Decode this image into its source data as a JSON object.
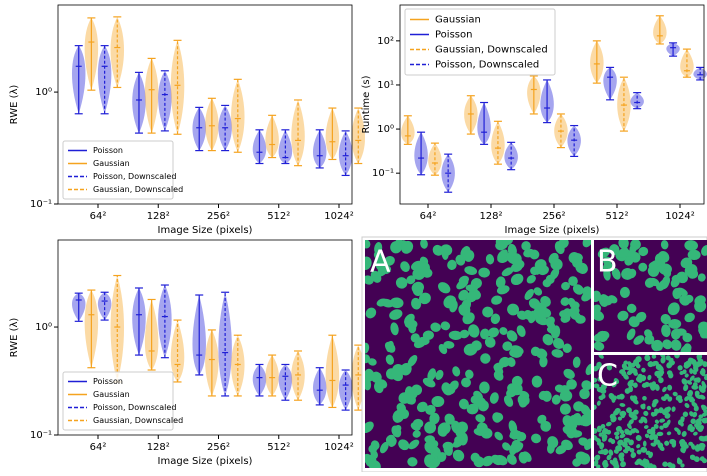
{
  "chart_data": [
    {
      "type": "violin",
      "xlabel": "Image Size (pixels)",
      "ylabel": "RWE (λ)",
      "log_y": true,
      "legend": "lower left",
      "categories": [
        "64²",
        "128²",
        "256²",
        "512²",
        "1024²"
      ],
      "ylim": [
        0.1,
        6
      ],
      "yticks": [
        {
          "value": 0.1,
          "label": "10⁻¹"
        },
        {
          "value": 1,
          "label": "10⁰"
        }
      ],
      "series": [
        {
          "name": "Poisson",
          "color": "#1f1fd6",
          "dashed": false,
          "min": [
            0.64,
            0.43,
            0.3,
            0.23,
            0.21
          ],
          "median": [
            1.7,
            0.85,
            0.48,
            0.29,
            0.27
          ],
          "max": [
            2.6,
            1.5,
            0.73,
            0.46,
            0.46
          ]
        },
        {
          "name": "Gaussian",
          "color": "#f5a31f",
          "dashed": false,
          "min": [
            1.04,
            0.43,
            0.3,
            0.26,
            0.25
          ],
          "median": [
            2.8,
            1.05,
            0.5,
            0.34,
            0.36
          ],
          "max": [
            4.6,
            2.0,
            0.88,
            0.62,
            0.72
          ]
        },
        {
          "name": "Poisson, Downscaled",
          "color": "#1f1fd6",
          "dashed": true,
          "min": [
            0.64,
            0.45,
            0.3,
            0.23,
            0.18
          ],
          "median": [
            1.7,
            0.95,
            0.48,
            0.26,
            0.27
          ],
          "max": [
            2.6,
            1.55,
            0.76,
            0.46,
            0.45
          ]
        },
        {
          "name": "Gaussian, Downscaled",
          "color": "#f5a31f",
          "dashed": true,
          "min": [
            1.1,
            0.42,
            0.29,
            0.22,
            0.23
          ],
          "median": [
            2.5,
            1.15,
            0.58,
            0.37,
            0.37
          ],
          "max": [
            4.7,
            2.9,
            1.3,
            0.85,
            0.72
          ]
        }
      ]
    },
    {
      "type": "violin",
      "xlabel": "Image Size (pixels)",
      "ylabel": "Runtime (s)",
      "log_y": true,
      "legend": "upper left",
      "categories": [
        "64²",
        "128²",
        "256²",
        "512²",
        "1024²"
      ],
      "ylim": [
        0.02,
        650
      ],
      "yticks": [
        {
          "value": 0.1,
          "label": "10⁻¹"
        },
        {
          "value": 1,
          "label": "10⁰"
        },
        {
          "value": 10,
          "label": "10¹"
        },
        {
          "value": 100,
          "label": "10²"
        }
      ],
      "series": [
        {
          "name": "Gaussian",
          "color": "#f5a31f",
          "dashed": false,
          "min": [
            0.45,
            0.77,
            2.2,
            11,
            85
          ],
          "median": [
            0.7,
            2.2,
            7.9,
            30,
            130
          ],
          "max": [
            2,
            5.7,
            16,
            100,
            370
          ]
        },
        {
          "name": "Poisson",
          "color": "#1f1fd6",
          "dashed": false,
          "min": [
            0.092,
            0.45,
            1.4,
            4.6,
            45
          ],
          "median": [
            0.22,
            0.85,
            3,
            15,
            70
          ],
          "max": [
            0.85,
            4,
            13,
            25,
            90
          ]
        },
        {
          "name": "Gaussian, Downscaled",
          "color": "#f5a31f",
          "dashed": true,
          "min": [
            0.09,
            0.16,
            0.38,
            0.9,
            15
          ],
          "median": [
            0.17,
            0.37,
            0.9,
            3.5,
            21
          ],
          "max": [
            0.48,
            1.5,
            2.2,
            15,
            65
          ]
        },
        {
          "name": "Poisson, Downscaled",
          "color": "#1f1fd6",
          "dashed": true,
          "min": [
            0.037,
            0.12,
            0.24,
            2.9,
            13
          ],
          "median": [
            0.1,
            0.22,
            0.56,
            4,
            17
          ],
          "max": [
            0.27,
            0.5,
            1.2,
            6.7,
            25
          ]
        }
      ]
    },
    {
      "type": "violin",
      "xlabel": "Image Size (pixels)",
      "ylabel": "RWE (λ)",
      "log_y": true,
      "legend": "lower left",
      "categories": [
        "64²",
        "128²",
        "256²",
        "512²",
        "1024²"
      ],
      "ylim": [
        0.1,
        6.4
      ],
      "yticks": [
        {
          "value": 0.1,
          "label": "10⁻¹"
        },
        {
          "value": 1,
          "label": "10⁰"
        }
      ],
      "series": [
        {
          "name": "Poisson",
          "color": "#1f1fd6",
          "dashed": false,
          "min": [
            1.13,
            0.55,
            0.36,
            0.23,
            0.19
          ],
          "median": [
            1.78,
            1.3,
            0.55,
            0.34,
            0.26
          ],
          "max": [
            2.06,
            2.3,
            1.98,
            0.45,
            0.42
          ]
        },
        {
          "name": "Gaussian",
          "color": "#f5a31f",
          "dashed": false,
          "min": [
            0.42,
            0.4,
            0.23,
            0.23,
            0.18
          ],
          "median": [
            1.3,
            0.6,
            0.5,
            0.34,
            0.32
          ],
          "max": [
            2.2,
            1.8,
            0.94,
            0.55,
            0.84
          ]
        },
        {
          "name": "Poisson, Downscaled",
          "color": "#1f1fd6",
          "dashed": true,
          "min": [
            1.16,
            0.52,
            0.23,
            0.21,
            0.17
          ],
          "median": [
            1.74,
            1.25,
            0.58,
            0.35,
            0.29
          ],
          "max": [
            2.1,
            2.45,
            2.1,
            0.45,
            0.4
          ]
        },
        {
          "name": "Gaussian, Downscaled",
          "color": "#f5a31f",
          "dashed": true,
          "min": [
            0.31,
            0.31,
            0.23,
            0.21,
            0.17
          ],
          "median": [
            1.0,
            0.45,
            0.45,
            0.36,
            0.36
          ],
          "max": [
            3.0,
            1.16,
            0.84,
            0.6,
            0.68
          ]
        }
      ]
    }
  ],
  "image_panel": {
    "labels": [
      "A",
      "B",
      "C"
    ]
  }
}
